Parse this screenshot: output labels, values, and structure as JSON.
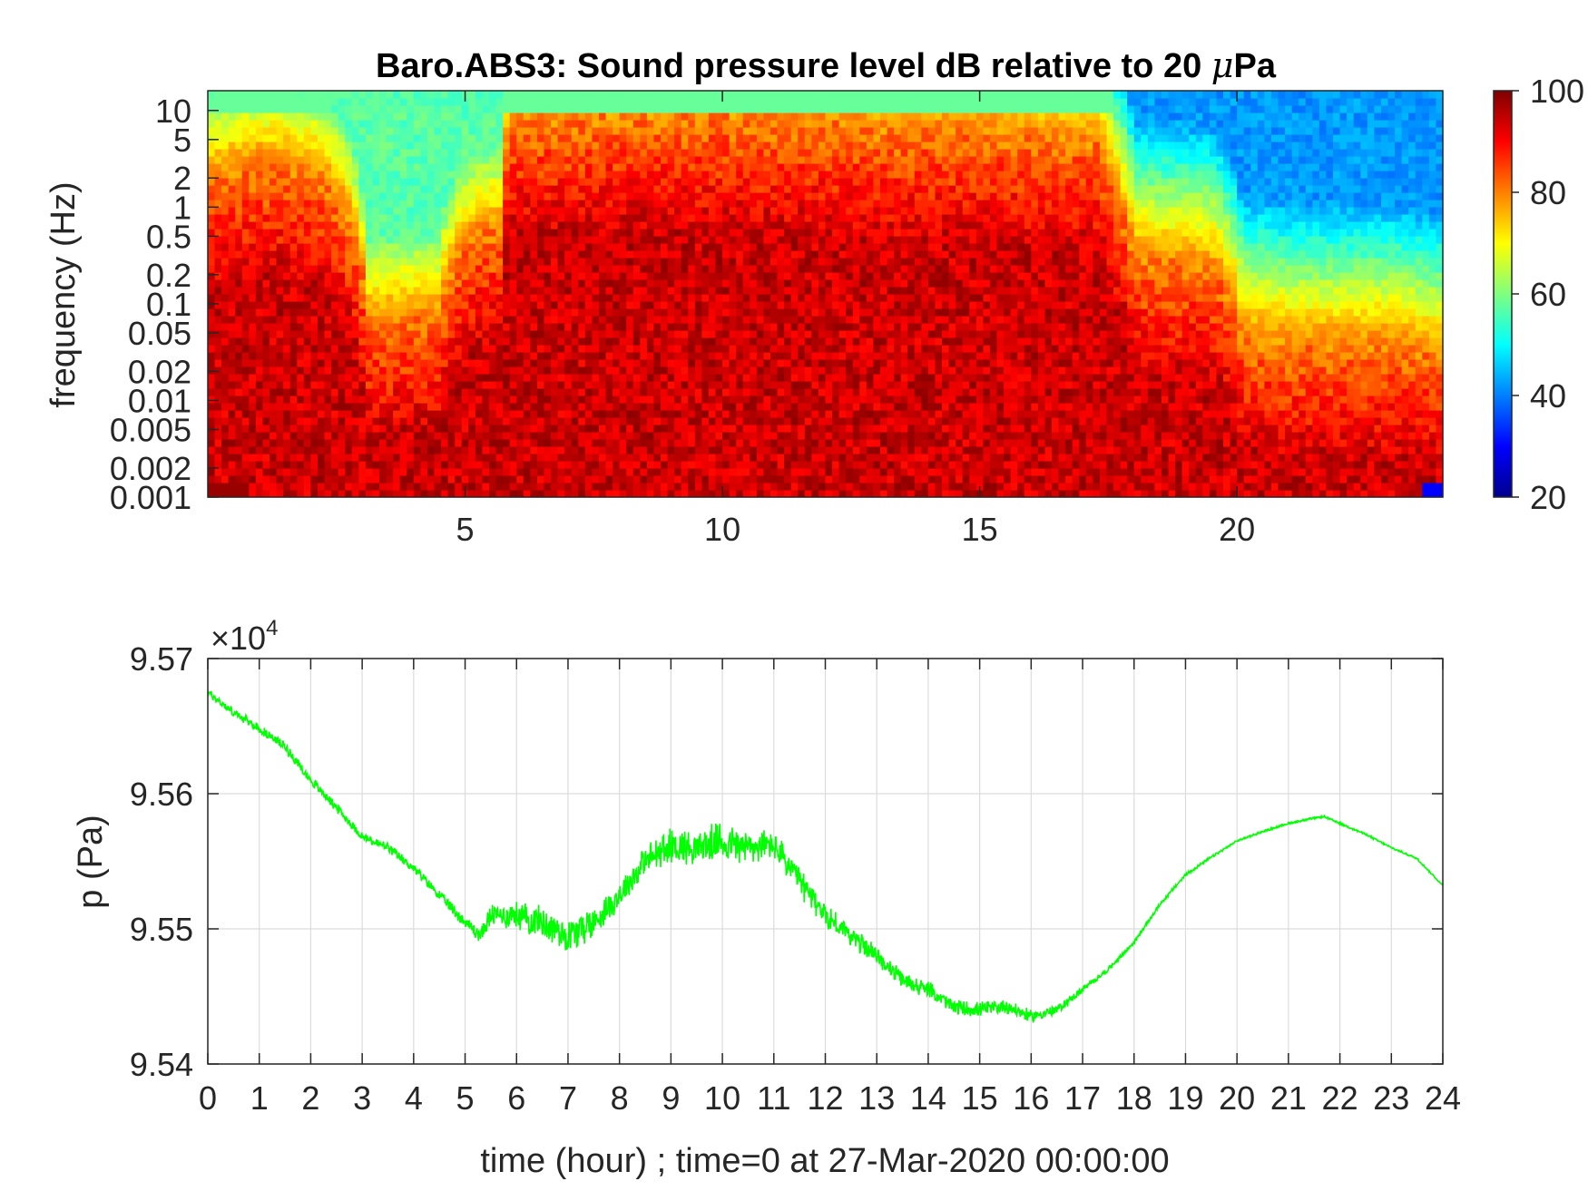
{
  "chart_data": [
    {
      "type": "heatmap",
      "title": "Baro.ABS3: Sound pressure level dB relative to 20 μPa",
      "title_prefix": "Baro.ABS3: Sound pressure level dB relative to 20 ",
      "title_mu": "μ",
      "title_unit": "Pa",
      "xlabel": "",
      "ylabel": "frequency (Hz)",
      "xlim": [
        0,
        24
      ],
      "x_ticks": [
        5,
        10,
        15,
        20
      ],
      "x_tick_labels": [
        "5",
        "10",
        "15",
        "20"
      ],
      "y_scale": "log",
      "ylim": [
        0.001,
        16
      ],
      "y_ticks": [
        0.001,
        0.002,
        0.005,
        0.01,
        0.02,
        0.05,
        0.1,
        0.2,
        0.5,
        1,
        2,
        5,
        10
      ],
      "y_tick_labels": [
        "0.001",
        "0.002",
        "0.005",
        "0.01",
        "0.02",
        "0.05",
        "0.1",
        "0.2",
        "0.5",
        "1",
        "2",
        "5",
        "10"
      ],
      "colormap": "jet",
      "clim": [
        20,
        100
      ],
      "colorbar_ticks": [
        20,
        40,
        60,
        80,
        100
      ],
      "colorbar_tick_labels": [
        "20",
        "40",
        "60",
        "80",
        "100"
      ],
      "activity_profile": {
        "x": [
          0,
          1,
          2,
          2.9,
          3.1,
          4.5,
          5.3,
          5.7,
          5.9,
          8,
          10,
          12,
          13.6,
          14,
          16,
          17.3,
          17.6,
          18,
          19.5,
          20.1,
          21,
          23,
          24
        ],
        "upper_freq_hz": [
          2,
          3,
          2.5,
          0.4,
          0.07,
          0.08,
          0.6,
          0.6,
          8,
          9,
          9,
          8,
          6,
          7,
          6,
          5,
          1.5,
          0.3,
          0.25,
          0.05,
          0.04,
          0.04,
          0.03
        ]
      },
      "max_level_db": 97,
      "background_level_db": 55,
      "quiet_level_db": 40
    },
    {
      "type": "line",
      "xlabel": "time (hour) ; time=0 at 27-Mar-2020 00:00:00",
      "ylabel": "p (Pa)",
      "y_multiplier_label": "×10",
      "y_multiplier_exponent": "4",
      "xlim": [
        0,
        24
      ],
      "ylim": [
        95400,
        95700
      ],
      "x_ticks": [
        0,
        1,
        2,
        3,
        4,
        5,
        6,
        7,
        8,
        9,
        10,
        11,
        12,
        13,
        14,
        15,
        16,
        17,
        18,
        19,
        20,
        21,
        22,
        23,
        24
      ],
      "x_tick_labels": [
        "0",
        "1",
        "2",
        "3",
        "4",
        "5",
        "6",
        "7",
        "8",
        "9",
        "10",
        "11",
        "12",
        "13",
        "14",
        "15",
        "16",
        "17",
        "18",
        "19",
        "20",
        "21",
        "22",
        "23",
        "24"
      ],
      "y_ticks": [
        95400,
        95500,
        95600,
        95700
      ],
      "y_tick_labels": [
        "9.54",
        "9.55",
        "9.56",
        "9.57"
      ],
      "grid": true,
      "line_color": "#00ff00",
      "series": [
        {
          "x": [
            0,
            0.5,
            1,
            1.5,
            2,
            2.5,
            3,
            3.5,
            4,
            4.5,
            5,
            5.3,
            5.5,
            6,
            6.5,
            7,
            7.5,
            8,
            8.5,
            9,
            9.5,
            10,
            10.5,
            11,
            11.5,
            12,
            12.5,
            13,
            13.5,
            14,
            14.5,
            15,
            15.5,
            16,
            16.5,
            17,
            17.5,
            18,
            18.5,
            19,
            19.5,
            20,
            20.5,
            21,
            21.5,
            21.7,
            22,
            22.5,
            23,
            23.5,
            24
          ],
          "y": [
            95675,
            95660,
            95648,
            95635,
            95610,
            95590,
            95568,
            95560,
            95545,
            95525,
            95505,
            95495,
            95510,
            95510,
            95505,
            95495,
            95505,
            95525,
            95550,
            95562,
            95560,
            95565,
            95560,
            95562,
            95535,
            95510,
            95495,
            95480,
            95462,
            95455,
            95442,
            95440,
            95443,
            95435,
            95440,
            95455,
            95470,
            95490,
            95518,
            95540,
            95553,
            95565,
            95572,
            95578,
            95582,
            95583,
            95578,
            95570,
            95560,
            95552,
            95532
          ],
          "noise_pa": [
            3,
            3,
            3,
            3,
            3,
            3,
            3,
            3,
            3,
            3,
            4,
            5,
            7,
            9,
            10,
            11,
            10,
            9,
            10,
            11,
            12,
            12,
            11,
            10,
            9,
            8,
            7,
            6,
            5,
            5,
            5,
            5,
            5,
            4,
            3,
            2,
            1.5,
            1.5,
            1.2,
            1,
            0.8,
            0.6,
            0.6,
            0.6,
            0.6,
            0.6,
            0.6,
            0.6,
            0.6,
            0.6,
            0.6
          ]
        }
      ]
    }
  ]
}
